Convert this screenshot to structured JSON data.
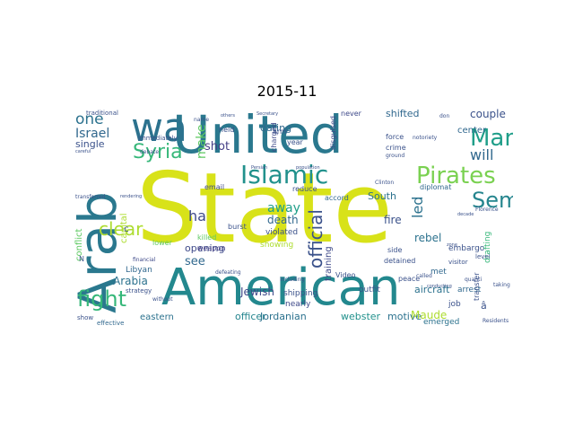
{
  "title": "2015-11",
  "words": [
    {
      "id": "state",
      "text": "State",
      "color": "#d8e219"
    },
    {
      "id": "united",
      "text": "United",
      "color": "#2a788e"
    },
    {
      "id": "american",
      "text": "American",
      "color": "#23888e"
    },
    {
      "id": "arab",
      "text": "Arab",
      "color": "#2a788e"
    },
    {
      "id": "wa",
      "text": "wa",
      "color": "#2c728e"
    },
    {
      "id": "islamic",
      "text": "Islamic",
      "color": "#21918c"
    },
    {
      "id": "pirates",
      "text": "Pirates",
      "color": "#7ad151"
    },
    {
      "id": "man",
      "text": "Man",
      "color": "#1f9e89"
    },
    {
      "id": "semen",
      "text": "Semen",
      "color": "#25858e"
    },
    {
      "id": "syria",
      "text": "Syria",
      "color": "#35b779"
    },
    {
      "id": "fight",
      "text": "fight",
      "color": "#35b779"
    },
    {
      "id": "clear",
      "text": "clear",
      "color": "#addc30"
    },
    {
      "id": "one",
      "text": "one",
      "color": "#2c728e"
    },
    {
      "id": "israel",
      "text": "Israel",
      "color": "#31688e"
    },
    {
      "id": "single",
      "text": "single",
      "color": "#3b528b"
    },
    {
      "id": "will",
      "text": "will",
      "color": "#31688e"
    },
    {
      "id": "official",
      "text": "official",
      "color": "#3b528b"
    },
    {
      "id": "led",
      "text": "led",
      "color": "#2c728e"
    },
    {
      "id": "ha",
      "text": "ha",
      "color": "#3e4989"
    },
    {
      "id": "see",
      "text": "see",
      "color": "#31688e"
    },
    {
      "id": "make",
      "text": "make",
      "color": "#5ec962"
    },
    {
      "id": "shot",
      "text": "shot",
      "color": "#433e85"
    },
    {
      "id": "arabia",
      "text": "Arabia",
      "color": "#2c728e"
    },
    {
      "id": "jewish",
      "text": "Jewish",
      "color": "#3e4989"
    },
    {
      "id": "death",
      "text": "death",
      "color": "#31688e"
    },
    {
      "id": "away",
      "text": "away",
      "color": "#1f9e89"
    },
    {
      "id": "dating",
      "text": "dating",
      "color": "#31688e"
    },
    {
      "id": "shifted",
      "text": "shifted",
      "color": "#31688e"
    },
    {
      "id": "couple",
      "text": "couple",
      "color": "#3b528b"
    },
    {
      "id": "south",
      "text": "South",
      "color": "#2c728e"
    },
    {
      "id": "fire",
      "text": "fire",
      "color": "#3b528b"
    },
    {
      "id": "rebel",
      "text": "rebel",
      "color": "#2c728e"
    },
    {
      "id": "center",
      "text": "center",
      "color": "#31688e"
    },
    {
      "id": "aircraft",
      "text": "aircraft",
      "color": "#2c728e"
    },
    {
      "id": "webster",
      "text": "webster",
      "color": "#21918c"
    },
    {
      "id": "motive",
      "text": "motive",
      "color": "#2c728e"
    },
    {
      "id": "maude",
      "text": "Maude",
      "color": "#addc30"
    },
    {
      "id": "officer",
      "text": "officer",
      "color": "#25858e"
    },
    {
      "id": "jordanian",
      "text": "Jordanian",
      "color": "#2c728e"
    },
    {
      "id": "eastern",
      "text": "eastern",
      "color": "#2c728e"
    },
    {
      "id": "opening",
      "text": "opening",
      "color": "#3e4989"
    },
    {
      "id": "libyan",
      "text": "Libyan",
      "color": "#31688e"
    },
    {
      "id": "conflict",
      "text": "conflict",
      "color": "#5ec962"
    },
    {
      "id": "traditional",
      "text": "traditional",
      "color": "#3b528b"
    },
    {
      "id": "capital",
      "text": "capital",
      "color": "#addc30"
    },
    {
      "id": "training",
      "text": "training",
      "color": "#3e4989"
    },
    {
      "id": "emerged",
      "text": "emerged",
      "color": "#2c728e"
    },
    {
      "id": "embargo",
      "text": "embargo",
      "color": "#3b528b"
    },
    {
      "id": "drafting",
      "text": "drafting",
      "color": "#35b779"
    },
    {
      "id": "violated",
      "text": "violated",
      "color": "#3b528b"
    },
    {
      "id": "showing",
      "text": "showing",
      "color": "#addc30"
    },
    {
      "id": "shipping",
      "text": "shipping",
      "color": "#3b528b"
    },
    {
      "id": "outfit",
      "text": "outfit",
      "color": "#3b528b"
    },
    {
      "id": "nearly",
      "text": "nearly",
      "color": "#3e4989"
    },
    {
      "id": "met",
      "text": "met",
      "color": "#31688e"
    },
    {
      "id": "job",
      "text": "job",
      "color": "#3b528b"
    },
    {
      "id": "arrest",
      "text": "arrest",
      "color": "#31688e"
    },
    {
      "id": "peace",
      "text": "peace",
      "color": "#3b528b"
    },
    {
      "id": "video",
      "text": "Video",
      "color": "#3b528b"
    },
    {
      "id": "detained",
      "text": "detained",
      "color": "#3b528b"
    },
    {
      "id": "side",
      "text": "side",
      "color": "#3b528b"
    },
    {
      "id": "diplomat",
      "text": "diplomat",
      "color": "#31688e"
    },
    {
      "id": "reduce",
      "text": "reduce",
      "color": "#3b528b"
    },
    {
      "id": "accord",
      "text": "accord",
      "color": "#31688e"
    },
    {
      "id": "burst",
      "text": "burst",
      "color": "#3b528b"
    },
    {
      "id": "killed",
      "text": "killed",
      "color": "#5ec962"
    },
    {
      "id": "weapon",
      "text": "weapon",
      "color": "#433e85"
    },
    {
      "id": "email",
      "text": "email",
      "color": "#3e4989"
    },
    {
      "id": "immediately",
      "text": "immediately",
      "color": "#3b528b"
    },
    {
      "id": "held",
      "text": "held",
      "color": "#3b528b"
    },
    {
      "id": "crime",
      "text": "crime",
      "color": "#3b528b"
    },
    {
      "id": "force",
      "text": "force",
      "color": "#3b528b"
    },
    {
      "id": "year",
      "text": "year",
      "color": "#3b528b"
    },
    {
      "id": "never",
      "text": "never",
      "color": "#3e4989"
    },
    {
      "id": "charged",
      "text": "charged",
      "color": "#3e4989"
    },
    {
      "id": "disguised",
      "text": "disguised",
      "color": "#3e4989"
    },
    {
      "id": "arm",
      "text": "arm",
      "color": "#3b528b"
    },
    {
      "id": "strategy",
      "text": "strategy",
      "color": "#3b528b"
    },
    {
      "id": "effective",
      "text": "effective",
      "color": "#31688e"
    },
    {
      "id": "show",
      "text": "show",
      "color": "#3b528b"
    },
    {
      "id": "lower",
      "text": "lower",
      "color": "#5ec962"
    },
    {
      "id": "financial",
      "text": "financial",
      "color": "#3e4989"
    },
    {
      "id": "transferred",
      "text": "transferred",
      "color": "#3b528b"
    },
    {
      "id": "level",
      "text": "level",
      "color": "#3b528b"
    },
    {
      "id": "visitor",
      "text": "visitor",
      "color": "#3b528b"
    },
    {
      "id": "called",
      "text": "called",
      "color": "#3b528b"
    },
    {
      "id": "florence",
      "text": "Florence",
      "color": "#3b528b"
    },
    {
      "id": "transfer",
      "text": "transfer",
      "color": "#3b528b"
    },
    {
      "id": "a_circ",
      "text": "â",
      "color": "#3b528b"
    },
    {
      "id": "residents",
      "text": "Residents",
      "color": "#3b528b"
    },
    {
      "id": "ground",
      "text": "ground",
      "color": "#3b528b"
    },
    {
      "id": "notoriety",
      "text": "notoriety",
      "color": "#3b528b"
    },
    {
      "id": "including",
      "text": "including",
      "color": "#3b528b"
    },
    {
      "id": "quanti",
      "text": "quanti",
      "color": "#3b528b"
    },
    {
      "id": "n_letter",
      "text": "N",
      "color": "#3b528b"
    },
    {
      "id": "c_letter",
      "text": "c",
      "color": "#3b528b"
    },
    {
      "id": "name",
      "text": "name",
      "color": "#3b528b"
    },
    {
      "id": "secretary",
      "text": "Secretary",
      "color": "#3b528b"
    },
    {
      "id": "debate",
      "text": "debate",
      "color": "#3b528b"
    },
    {
      "id": "defeating",
      "text": "defeating",
      "color": "#3b528b"
    },
    {
      "id": "without",
      "text": "without",
      "color": "#3b528b"
    },
    {
      "id": "population",
      "text": "population",
      "color": "#3b528b"
    },
    {
      "id": "clinton",
      "text": "Clinton",
      "color": "#3b528b"
    },
    {
      "id": "taking",
      "text": "taking",
      "color": "#3b528b"
    },
    {
      "id": "don",
      "text": "don",
      "color": "#3b528b"
    },
    {
      "id": "zone",
      "text": "zone",
      "color": "#3b528b"
    },
    {
      "id": "decade",
      "text": "decade",
      "color": "#3b528b"
    },
    {
      "id": "conducting",
      "text": "conducting",
      "color": "#3b528b"
    },
    {
      "id": "others",
      "text": "others",
      "color": "#3b528b"
    },
    {
      "id": "persian",
      "text": "Persian",
      "color": "#3b528b"
    },
    {
      "id": "careful",
      "text": "careful",
      "color": "#3b528b"
    },
    {
      "id": "rendering",
      "text": "rendering",
      "color": "#3b528b"
    }
  ]
}
